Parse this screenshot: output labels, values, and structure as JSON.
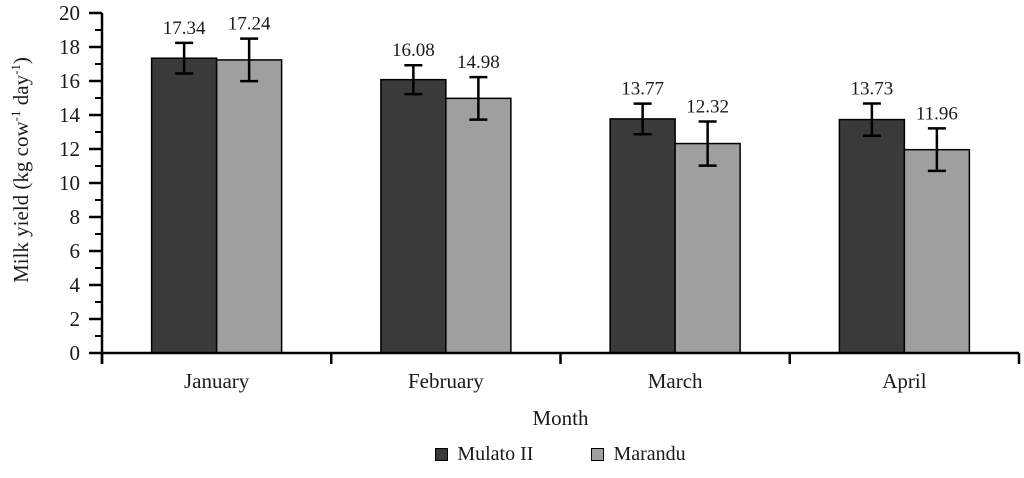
{
  "chart_data": {
    "type": "bar",
    "title": "",
    "xlabel": "Month",
    "ylabel": "Milk yield (kg cow⁻¹ day⁻¹)",
    "categories": [
      "January",
      "February",
      "March",
      "April"
    ],
    "series": [
      {
        "name": "Mulato II",
        "color": "#3a3a3a",
        "values": [
          17.34,
          16.08,
          13.77,
          13.73
        ],
        "errors": [
          0.9,
          0.85,
          0.9,
          0.95
        ]
      },
      {
        "name": "Marandu",
        "color": "#9f9f9f",
        "values": [
          17.24,
          14.98,
          12.32,
          11.96
        ],
        "errors": [
          1.25,
          1.25,
          1.3,
          1.25
        ]
      }
    ],
    "value_labels": [
      [
        "17.34",
        "16.08",
        "13.77",
        "13.73"
      ],
      [
        "17.24",
        "14.98",
        "12.32",
        "11.96"
      ]
    ],
    "ylim": [
      0,
      20
    ],
    "ytick_labels": [
      "0",
      "2",
      "4",
      "6",
      "8",
      "10",
      "12",
      "14",
      "16",
      "18",
      "20"
    ],
    "ytick_major_step": 2,
    "ytick_minor_step": 1,
    "grid": false,
    "legend_position": "bottom",
    "bar_edge_color": "#000000",
    "error_bar_color": "#000000",
    "axis_color": "#000000",
    "text_color": "#1a1a1a"
  }
}
